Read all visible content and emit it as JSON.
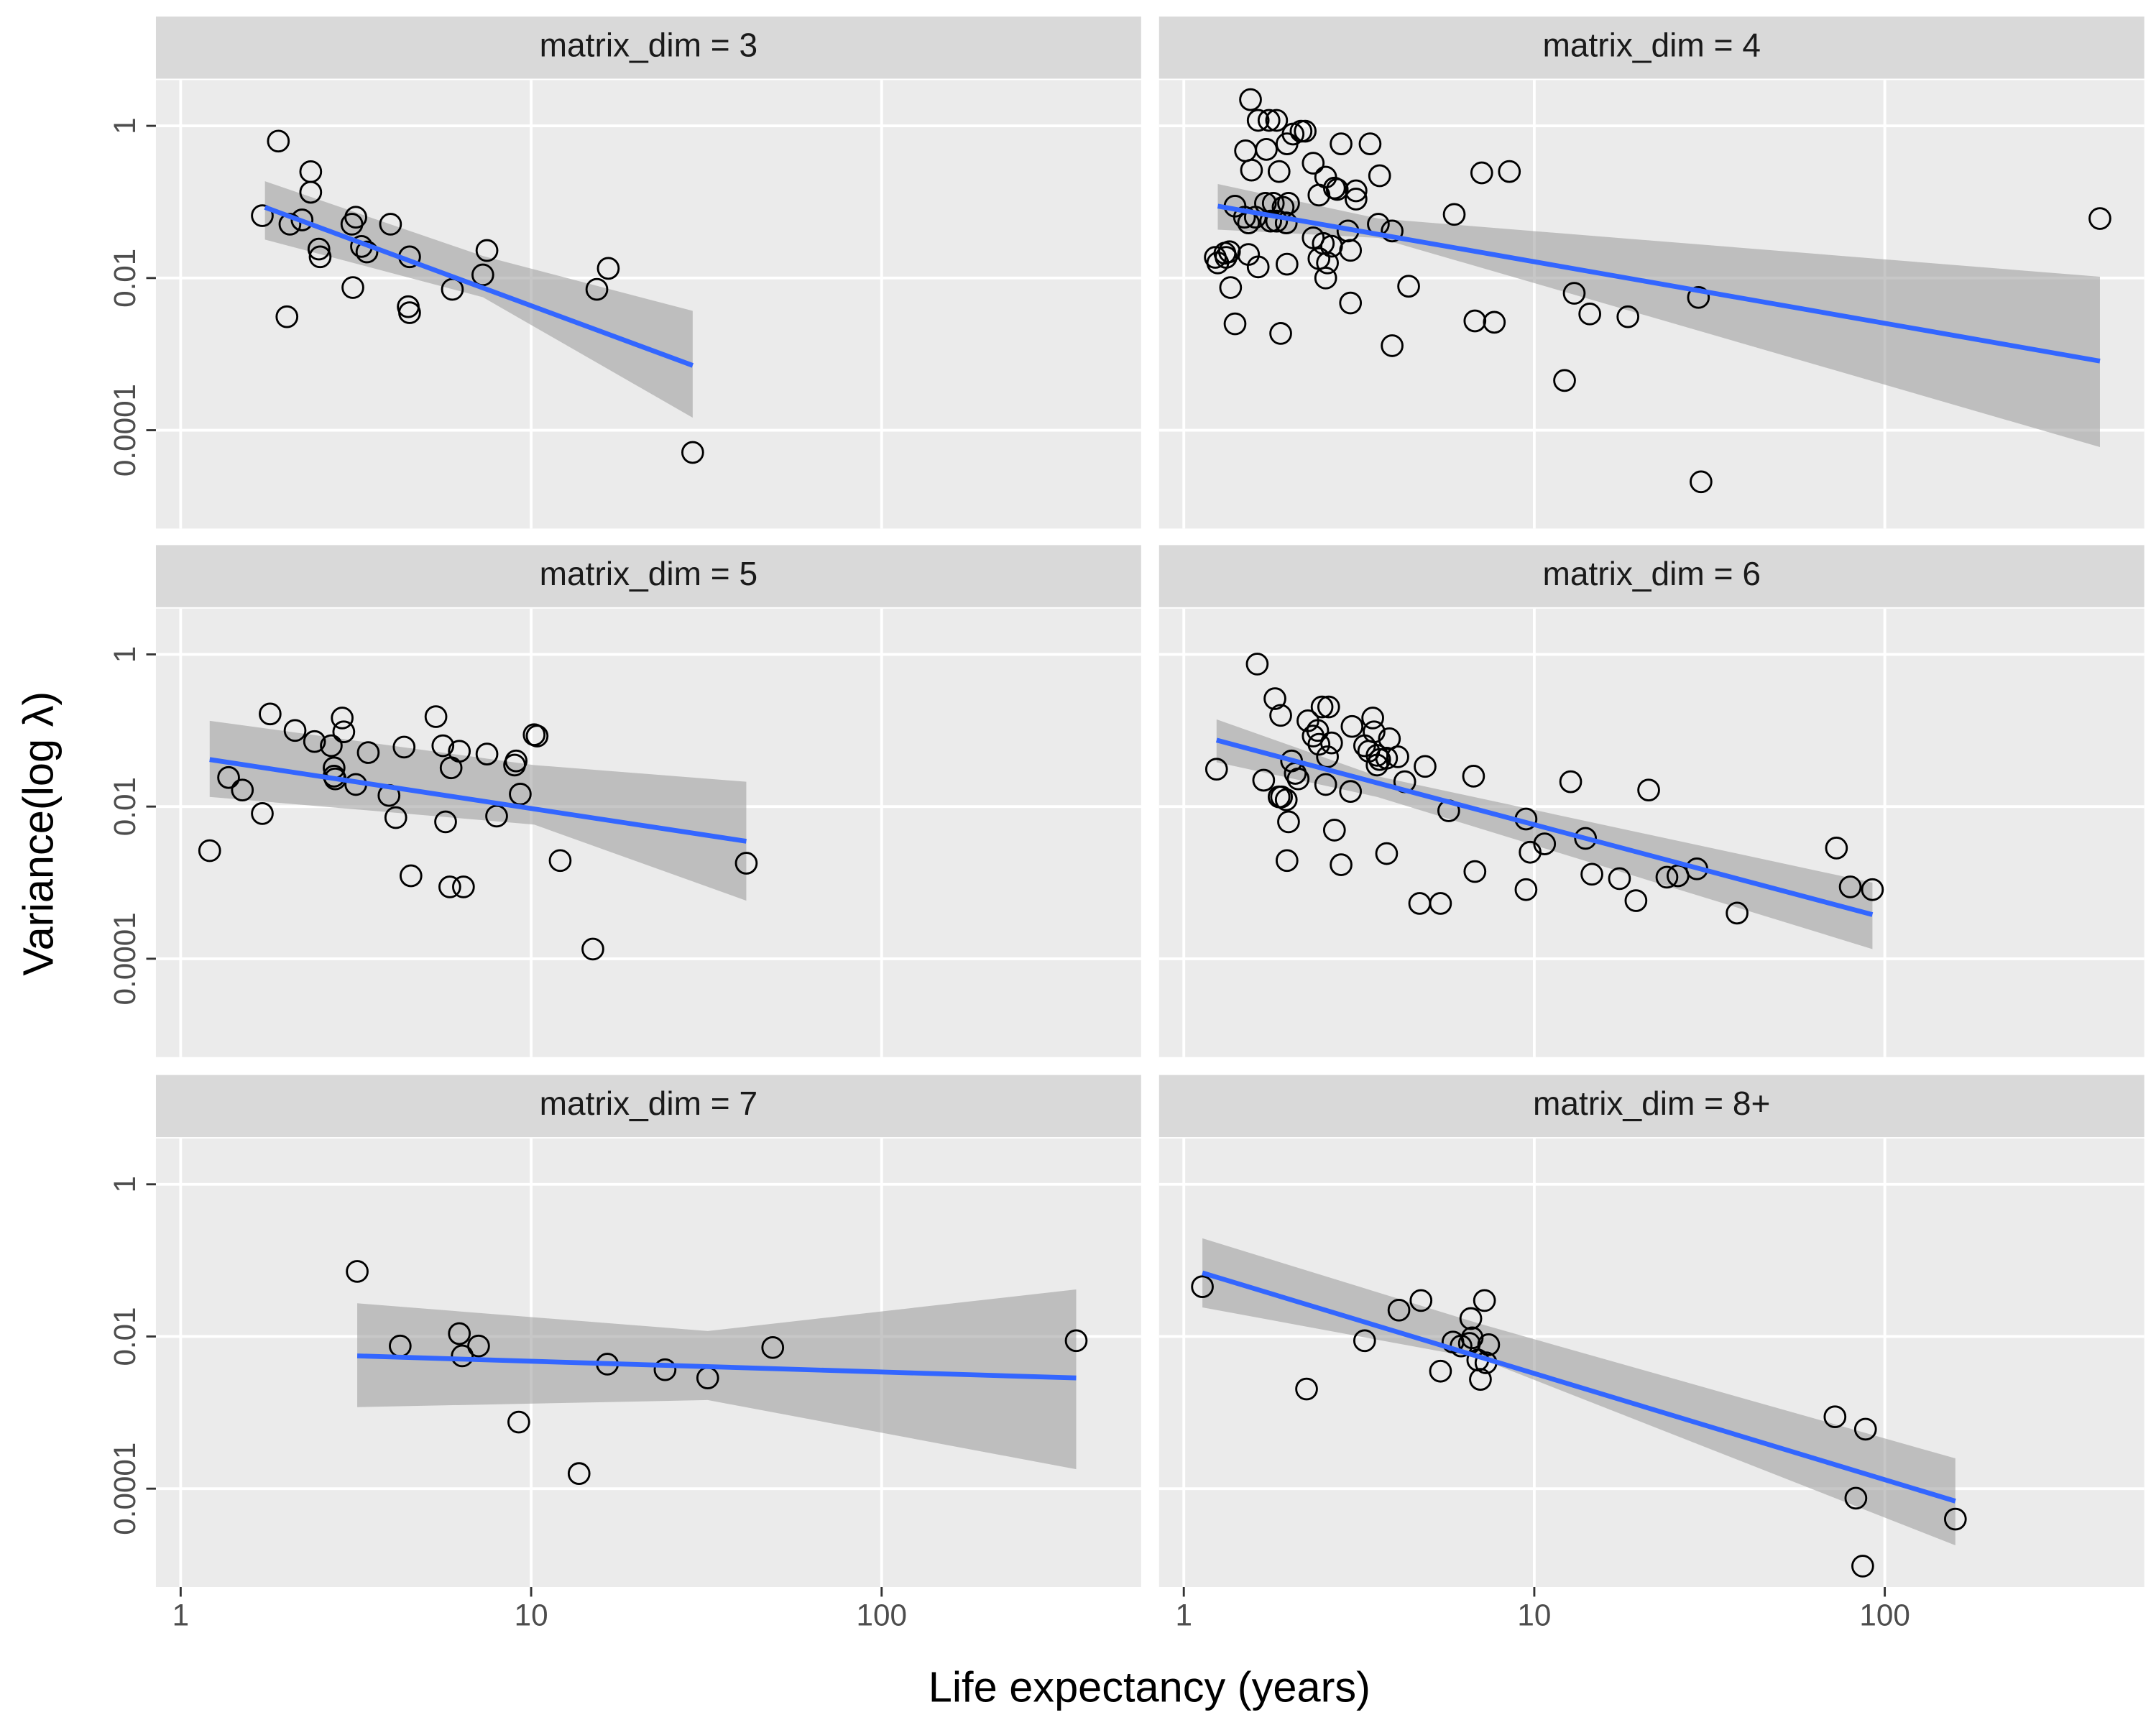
{
  "chart_data": {
    "type": "scatter",
    "x_label": "Life expectancy (years)",
    "y_label": "Variance(log λ)",
    "xlim": [
      0.85,
      550
    ],
    "ylim": [
      5.1e-06,
      4
    ],
    "xticks": [
      1,
      10,
      100
    ],
    "yticks": [
      1,
      0.01,
      0.0001
    ],
    "log_x": true,
    "log_y": true,
    "grid": true,
    "point_color": "#000000",
    "fit_color": "#3366ff",
    "band_color": "#999999",
    "panels": [
      {
        "title": "matrix_dim = 3",
        "x": [
          1.71,
          1.9,
          2.05,
          2.22,
          2.01,
          2.35,
          2.35,
          2.48,
          2.5,
          3.08,
          3.16,
          3.1,
          3.28,
          3.4,
          3.97,
          4.5,
          4.46,
          4.5,
          5.96,
          7.28,
          7.48,
          15.4,
          16.6,
          28.9
        ],
        "y": [
          0.066,
          0.63,
          0.051,
          0.058,
          0.0031,
          0.25,
          0.134,
          0.024,
          0.019,
          0.051,
          0.063,
          0.0075,
          0.026,
          0.022,
          0.051,
          0.019,
          0.0042,
          0.0035,
          0.0071,
          0.011,
          0.023,
          0.0071,
          0.0134,
          5.1e-05
        ],
        "fit": {
          "x": [
            1.74,
            28.9
          ],
          "y": [
            0.085,
            0.00071
          ]
        },
        "band": {
          "x": [
            1.74,
            7.28,
            28.9
          ],
          "upper": [
            0.187,
            0.0195,
            0.0037
          ],
          "lower": [
            0.032,
            0.0056,
            0.000146
          ]
        }
      },
      {
        "title": "matrix_dim = 4",
        "x": [
          1.55,
          1.5,
          1.56,
          1.63,
          1.75,
          1.84,
          1.72,
          1.87,
          1.97,
          2.05,
          2.16,
          2.22,
          2.34,
          2.54,
          2.81,
          3.4,
          3.62,
          3.1,
          2.69,
          1.4,
          1.49,
          1.53,
          1.6,
          1.71,
          1.8,
          1.92,
          1.99,
          1.97,
          1.77,
          1.84,
          1.96,
          2.43,
          2.74,
          3.1,
          2.94,
          2.34,
          2.5,
          2.64,
          2.99,
          2.57,
          2.43,
          2.54,
          3.93,
          3.59,
          1.25,
          1.23,
          1.31,
          1.35,
          1.32,
          1.36,
          1.4,
          1.53,
          1.63,
          1.89,
          2.99,
          3.93,
          4.38,
          5.91,
          7.08,
          8.49,
          6.77,
          7.69,
          13,
          14.4,
          18.5,
          12.2,
          29.4,
          29.9,
          411
        ],
        "y": [
          2.21,
          0.47,
          0.262,
          1.18,
          1.18,
          1.18,
          0.49,
          0.251,
          0.58,
          0.78,
          0.85,
          0.85,
          0.323,
          0.212,
          0.58,
          0.58,
          0.221,
          0.14,
          0.152,
          0.088,
          0.063,
          0.053,
          0.063,
          0.096,
          0.096,
          0.085,
          0.096,
          0.0152,
          0.056,
          0.056,
          0.053,
          0.123,
          0.146,
          0.109,
          0.0415,
          0.0337,
          0.0285,
          0.0262,
          0.0231,
          0.0158,
          0.018,
          0.01,
          0.0415,
          0.051,
          0.0158,
          0.0187,
          0.0212,
          0.0222,
          0.0187,
          0.0075,
          0.0025,
          0.0204,
          0.014,
          0.00187,
          0.0047,
          0.00129,
          0.0078,
          0.0686,
          0.241,
          0.251,
          0.00273,
          0.00262,
          0.0063,
          0.00337,
          0.0031,
          0.00045,
          0.00556,
          2.1e-05,
          0.0605
        ],
        "fit": {
          "x": [
            1.25,
            411
          ],
          "y": [
            0.088,
            0.00081
          ]
        },
        "band": {
          "x": [
            1.25,
            3.59,
            411
          ],
          "upper": [
            0.172,
            0.0605,
            0.0104
          ],
          "lower": [
            0.0433,
            0.0337,
            6e-05
          ]
        }
      },
      {
        "title": "matrix_dim = 5",
        "x": [
          1.21,
          1.37,
          1.5,
          1.71,
          1.8,
          2.12,
          2.41,
          2.69,
          2.74,
          2.74,
          2.76,
          2.89,
          2.92,
          3.16,
          3.43,
          3.93,
          4.11,
          4.34,
          4.54,
          5.35,
          5.6,
          5.7,
          5.91,
          5.86,
          6.24,
          6.41,
          7.48,
          7.97,
          8.97,
          9.06,
          9.31,
          10.2,
          10.4,
          12.1,
          15,
          41.1
        ],
        "y": [
          0.00263,
          0.0241,
          0.0165,
          0.0081,
          0.165,
          0.1,
          0.0716,
          0.063,
          0.0323,
          0.0251,
          0.0231,
          0.146,
          0.096,
          0.0195,
          0.0512,
          0.014,
          0.00716,
          0.0605,
          0.00123,
          0.152,
          0.063,
          0.0063,
          0.0323,
          0.00088,
          0.0534,
          0.00088,
          0.049,
          0.0075,
          0.0351,
          0.0398,
          0.0146,
          0.088,
          0.0845,
          0.00195,
          0.000134,
          0.0018
        ],
        "fit": {
          "x": [
            1.21,
            41.1
          ],
          "y": [
            0.0415,
            0.0035
          ]
        },
        "band": {
          "x": [
            1.21,
            10.2,
            41.1
          ],
          "upper": [
            0.134,
            0.0351,
            0.0212
          ],
          "lower": [
            0.0134,
            0.0058,
            0.00058
          ]
        }
      },
      {
        "title": "matrix_dim = 6",
        "x": [
          1.24,
          1.62,
          1.82,
          1.89,
          1.69,
          1.9,
          1.87,
          1.96,
          1.99,
          1.97,
          2.03,
          2.08,
          2.12,
          2.26,
          2.34,
          2.41,
          2.43,
          2.48,
          2.59,
          2.57,
          2.54,
          2.64,
          2.69,
          2.81,
          2.99,
          3.02,
          3.28,
          3.37,
          3.46,
          3.49,
          3.56,
          3.56,
          3.62,
          3.79,
          3.79,
          3.86,
          4.08,
          4.27,
          4.88,
          4.71,
          5.4,
          5.7,
          6.71,
          6.77,
          9.47,
          9.73,
          9.47,
          10.7,
          12.7,
          14,
          14.6,
          17.5,
          19.5,
          21.2,
          23.9,
          25.7,
          29.1,
          37.9,
          72.8,
          79.7,
          92.2
        ],
        "y": [
          0.031,
          0.746,
          0.262,
          0.158,
          0.0222,
          0.0134,
          0.0134,
          0.0123,
          0.0063,
          0.00195,
          0.0398,
          0.0273,
          0.0231,
          0.134,
          0.0845,
          0.1,
          0.0658,
          0.204,
          0.204,
          0.0451,
          0.0195,
          0.0686,
          0.0049,
          0.00172,
          0.0158,
          0.113,
          0.063,
          0.0534,
          0.146,
          0.096,
          0.0471,
          0.0351,
          0.0415,
          0.0433,
          0.00241,
          0.0778,
          0.0451,
          0.0212,
          0.0337,
          0.000533,
          0.000533,
          0.0088,
          0.0251,
          0.0014,
          0.00686,
          0.00251,
          0.00081,
          0.00323,
          0.0212,
          0.00382,
          0.00129,
          0.00113,
          0.00058,
          0.0165,
          0.00118,
          0.00123,
          0.00152,
          0.000398,
          0.00285,
          0.00088,
          0.00081
        ],
        "fit": {
          "x": [
            1.24,
            92.2
          ],
          "y": [
            0.0746,
            0.00038
          ]
        },
        "band": {
          "x": [
            1.24,
            3.56,
            92.2
          ],
          "upper": [
            0.14,
            0.0251,
            0.001
          ],
          "lower": [
            0.0382,
            0.0134,
            0.000134
          ]
        }
      },
      {
        "title": "matrix_dim = 7",
        "x": [
          3.19,
          4.23,
          6.24,
          6.36,
          7.08,
          9.22,
          13.7,
          16.5,
          24.1,
          31.9,
          48.9,
          359
        ],
        "y": [
          0.0716,
          0.0075,
          0.0109,
          0.00556,
          0.0075,
          0.00075,
          0.000158,
          0.00433,
          0.00366,
          0.00285,
          0.00716,
          0.0088
        ],
        "fit": {
          "x": [
            3.19,
            359
          ],
          "y": [
            0.00556,
            0.00285
          ]
        },
        "band": {
          "x": [
            3.19,
            31.9,
            359
          ],
          "upper": [
            0.0273,
            0.0118,
            0.0415
          ],
          "lower": [
            0.00118,
            0.00146,
            0.00018
          ]
        }
      },
      {
        "title": "matrix_dim = 8+",
        "x": [
          1.13,
          2.24,
          3.28,
          4.11,
          4.75,
          5.4,
          5.86,
          6.18,
          6.53,
          6.59,
          6.65,
          6.9,
          7.02,
          7.21,
          7.28,
          7.41,
          72.1,
          82.7,
          88.1,
          86.5,
          159
        ],
        "y": [
          0.0451,
          0.00204,
          0.0088,
          0.0222,
          0.0297,
          0.0035,
          0.00845,
          0.0075,
          0.0081,
          0.0172,
          0.0096,
          0.0049,
          0.00273,
          0.0297,
          0.00451,
          0.0078,
          0.00088,
          7.5e-05,
          0.000605,
          9.6e-06,
          3.98e-05
        ],
        "fit": {
          "x": [
            1.13,
            159
          ],
          "y": [
            0.0686,
            6.86e-05
          ]
        },
        "band": {
          "x": [
            1.13,
            7.02,
            159
          ],
          "upper": [
            0.195,
            0.0146,
            0.00025
          ],
          "lower": [
            0.0241,
            0.0051,
            1.8e-05
          ]
        }
      }
    ]
  }
}
